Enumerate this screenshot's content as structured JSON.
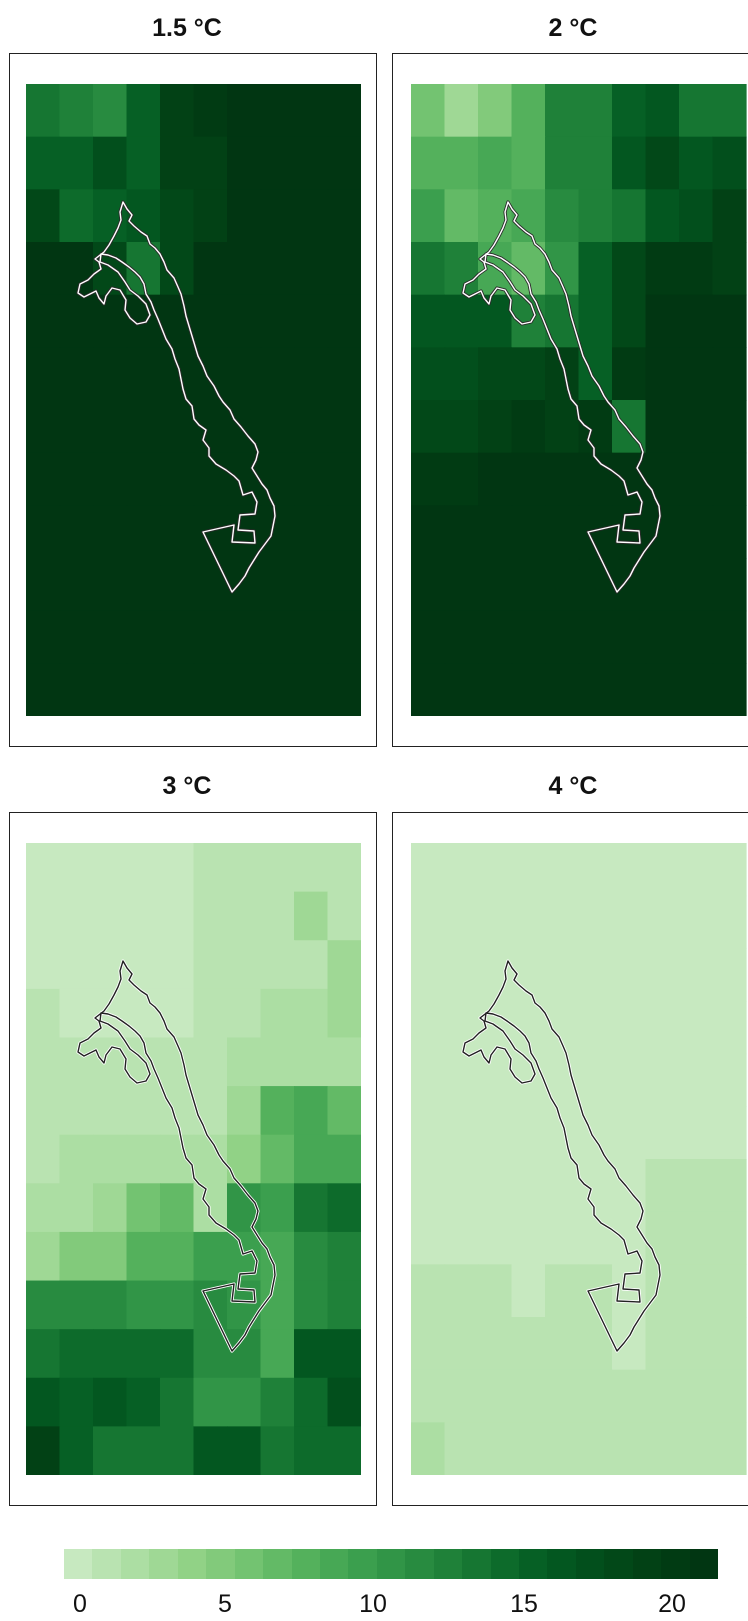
{
  "panels": [
    {
      "title": "1.5 °C",
      "outline_color": "#ffffff",
      "grid": [
        [
          14,
          13,
          12,
          16,
          20,
          21,
          22,
          22,
          22,
          22
        ],
        [
          16,
          16,
          18,
          16,
          20,
          20,
          22,
          22,
          22,
          22
        ],
        [
          19,
          15,
          16,
          17,
          19,
          20,
          22,
          22,
          22,
          22
        ],
        [
          22,
          22,
          19,
          14,
          19,
          22,
          22,
          22,
          22,
          22
        ],
        [
          22,
          22,
          22,
          22,
          22,
          22,
          22,
          22,
          22,
          22
        ],
        [
          22,
          22,
          22,
          22,
          22,
          22,
          22,
          22,
          22,
          22
        ],
        [
          22,
          22,
          22,
          22,
          22,
          22,
          22,
          22,
          22,
          22
        ],
        [
          22,
          22,
          22,
          22,
          22,
          22,
          22,
          22,
          22,
          22
        ],
        [
          22,
          22,
          22,
          22,
          22,
          22,
          22,
          22,
          22,
          22
        ],
        [
          22,
          22,
          22,
          22,
          22,
          22,
          22,
          22,
          22,
          22
        ],
        [
          22,
          22,
          22,
          22,
          22,
          22,
          22,
          22,
          22,
          22
        ],
        [
          22,
          22,
          22,
          22,
          22,
          22,
          22,
          22,
          22,
          22
        ]
      ]
    },
    {
      "title": "2 °C",
      "outline_color": "#ffffff",
      "grid": [
        [
          6,
          3,
          5,
          8,
          13,
          13,
          16,
          17,
          14,
          14
        ],
        [
          8,
          8,
          9,
          8,
          13,
          13,
          17,
          19,
          17,
          18
        ],
        [
          10,
          7,
          8,
          9,
          12,
          13,
          14,
          17,
          18,
          20
        ],
        [
          14,
          13,
          9,
          7,
          11,
          16,
          19,
          21,
          21,
          20
        ],
        [
          17,
          17,
          17,
          13,
          14,
          16,
          19,
          22,
          22,
          22
        ],
        [
          18,
          18,
          19,
          19,
          20,
          16,
          21,
          22,
          22,
          22
        ],
        [
          19,
          19,
          20,
          21,
          20,
          21,
          14,
          22,
          22,
          22
        ],
        [
          21,
          21,
          22,
          22,
          22,
          22,
          22,
          22,
          22,
          22
        ],
        [
          22,
          22,
          22,
          22,
          22,
          22,
          22,
          22,
          22,
          22
        ],
        [
          22,
          22,
          22,
          22,
          22,
          22,
          22,
          22,
          22,
          22
        ],
        [
          22,
          22,
          22,
          22,
          22,
          22,
          22,
          22,
          22,
          22
        ],
        [
          22,
          22,
          22,
          22,
          22,
          22,
          22,
          22,
          22,
          22
        ]
      ]
    },
    {
      "title": "3 °C",
      "outline_color": "#222222",
      "grid": [
        [
          0,
          0,
          0,
          0,
          0,
          1,
          1,
          1,
          1,
          1
        ],
        [
          0,
          0,
          0,
          0,
          0,
          1,
          1,
          1,
          3,
          1
        ],
        [
          0,
          0,
          0,
          0,
          0,
          1,
          1,
          1,
          1,
          3
        ],
        [
          1,
          0,
          0,
          0,
          0,
          1,
          1,
          2,
          2,
          3
        ],
        [
          1,
          1,
          1,
          1,
          1,
          1,
          2,
          2,
          2,
          2
        ],
        [
          1,
          1,
          1,
          1,
          1,
          1,
          3,
          8,
          9,
          7
        ],
        [
          1,
          2,
          2,
          2,
          2,
          2,
          4,
          7,
          9,
          9
        ],
        [
          2,
          2,
          3,
          6,
          7,
          2,
          11,
          10,
          14,
          15
        ],
        [
          3,
          5,
          5,
          8,
          8,
          10,
          10,
          9,
          12,
          13
        ],
        [
          12,
          12,
          12,
          11,
          11,
          12,
          11,
          9,
          12,
          13
        ],
        [
          14,
          15,
          15,
          15,
          15,
          12,
          12,
          9,
          17,
          17
        ],
        [
          17,
          16,
          17,
          16,
          14,
          11,
          11,
          13,
          15,
          18
        ],
        [
          20,
          16,
          14,
          14,
          14,
          17,
          17,
          14,
          15,
          15
        ]
      ]
    },
    {
      "title": "4 °C",
      "outline_color": "#222222",
      "grid": [
        [
          0,
          0,
          0,
          0,
          0,
          0,
          0,
          0,
          0,
          0
        ],
        [
          0,
          0,
          0,
          0,
          0,
          0,
          0,
          0,
          0,
          0
        ],
        [
          0,
          0,
          0,
          0,
          0,
          0,
          0,
          0,
          0,
          0
        ],
        [
          0,
          0,
          0,
          0,
          0,
          0,
          0,
          0,
          0,
          0
        ],
        [
          0,
          0,
          0,
          0,
          0,
          0,
          0,
          0,
          0,
          0
        ],
        [
          0,
          0,
          0,
          0,
          0,
          0,
          0,
          0,
          0,
          0
        ],
        [
          0,
          0,
          0,
          0,
          0,
          0,
          0,
          1,
          1,
          1
        ],
        [
          0,
          0,
          0,
          0,
          0,
          0,
          0,
          1,
          1,
          1
        ],
        [
          1,
          1,
          1,
          0,
          1,
          1,
          0,
          1,
          1,
          1
        ],
        [
          1,
          1,
          1,
          1,
          1,
          1,
          0,
          1,
          1,
          1
        ],
        [
          1,
          1,
          1,
          1,
          1,
          1,
          1,
          1,
          1,
          1
        ],
        [
          2,
          1,
          1,
          1,
          1,
          1,
          1,
          1,
          1,
          1
        ]
      ]
    }
  ],
  "legend": {
    "ticks": [
      "0",
      "5",
      "10",
      "15",
      "20"
    ],
    "tick_values": [
      0,
      5,
      10,
      15,
      20
    ],
    "min": 0,
    "max": 22,
    "colors": [
      "#c7e9c0",
      "#b9e3b1",
      "#acdea3",
      "#9fd895",
      "#91d286",
      "#82ca7b",
      "#73c371",
      "#63ba66",
      "#54b15c",
      "#47a855",
      "#3b9f4e",
      "#319547",
      "#288b40",
      "#1f8139",
      "#167632",
      "#0d6b2b",
      "#066025",
      "#035720",
      "#024f1c",
      "#024818",
      "#024115",
      "#013b13",
      "#013612"
    ]
  }
}
